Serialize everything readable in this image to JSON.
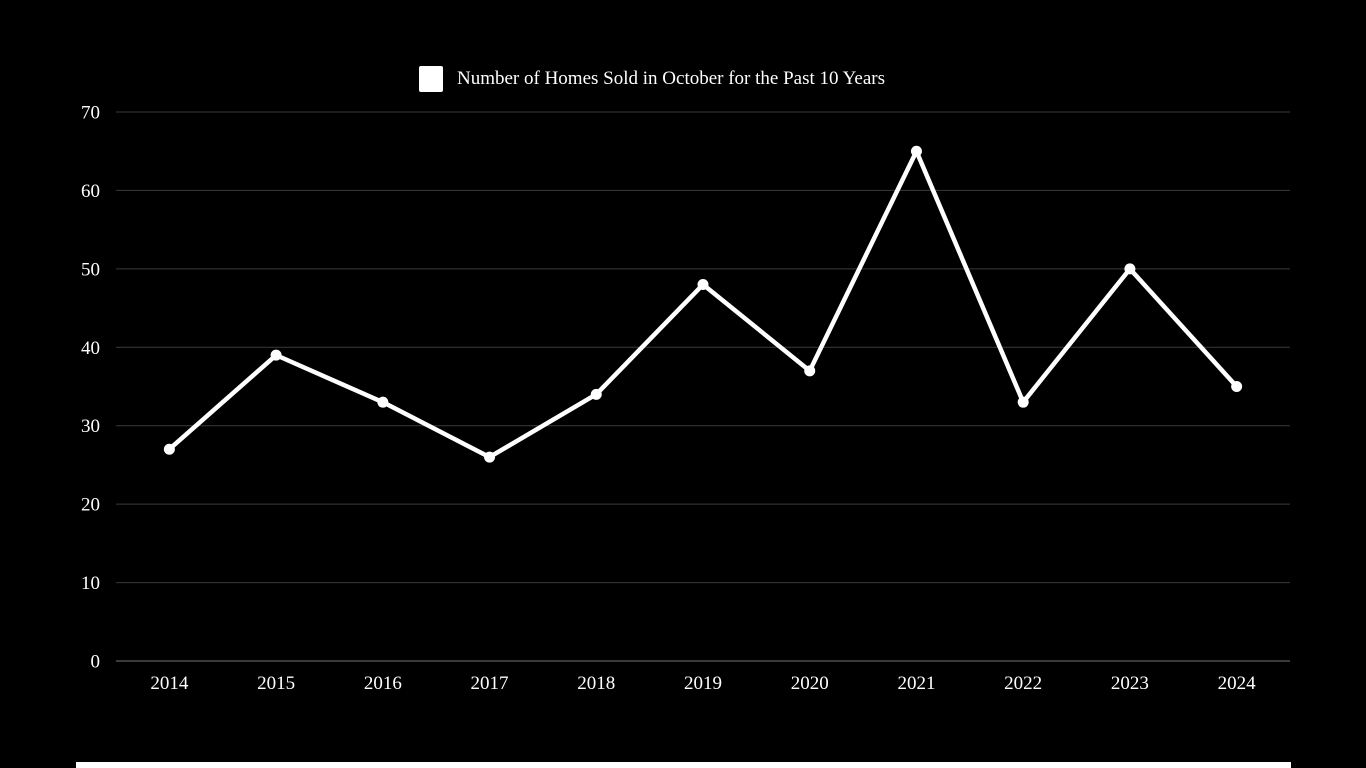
{
  "legend": {
    "label": "Number of Homes Sold in October for the Past 10 Years",
    "swatch_color": "#ffffff"
  },
  "chart_data": {
    "type": "line",
    "title": "Number of Homes Sold in October for the Past 10 Years",
    "categories": [
      "2014",
      "2015",
      "2016",
      "2017",
      "2018",
      "2019",
      "2020",
      "2021",
      "2022",
      "2023",
      "2024"
    ],
    "series": [
      {
        "name": "Number of Homes Sold in October for the Past 10 Years",
        "values": [
          27,
          39,
          33,
          26,
          34,
          48,
          37,
          65,
          33,
          50,
          35
        ]
      }
    ],
    "xlabel": "",
    "ylabel": "",
    "ylim": [
      0,
      70
    ],
    "yticks": [
      0,
      10,
      20,
      30,
      40,
      50,
      60,
      70
    ],
    "grid": true,
    "legend_position": "top",
    "colors": {
      "background": "#000000",
      "line": "#ffffff",
      "marker": "#ffffff",
      "grid_line": "#3a3a3a",
      "axis_line": "#4d4d4d",
      "tick_text": "#ffffff"
    }
  },
  "bottom_panel": {
    "color": "#ffffff"
  }
}
